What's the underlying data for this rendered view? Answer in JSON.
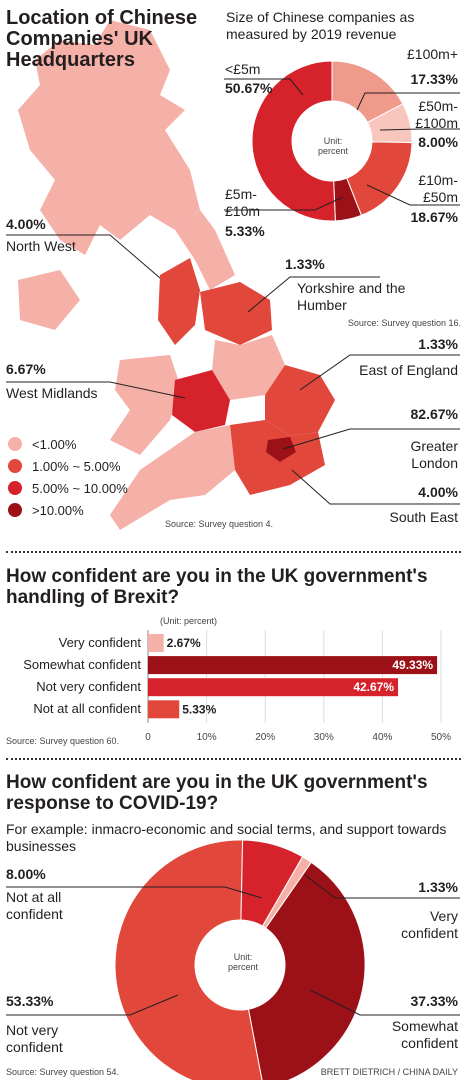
{
  "colors": {
    "light": "#f5b0a7",
    "mid": "#e2473b",
    "strong": "#d6232b",
    "dark": "#9c1118",
    "salmon": "#f09a8c"
  },
  "map": {
    "title": "Location of Chinese Companies' UK Headquarters",
    "source": "Source: Survey question 4.",
    "regions": [
      {
        "pct": "4.00%",
        "name": "North West"
      },
      {
        "pct": "1.33%",
        "name": "Yorkshire and the Humber"
      },
      {
        "pct": "6.67%",
        "name": "West Midlands"
      },
      {
        "pct": "1.33%",
        "name": "East of England"
      },
      {
        "pct": "82.67%",
        "name": "Greater London"
      },
      {
        "pct": "4.00%",
        "name": "South East"
      }
    ],
    "legend": [
      {
        "label": "<1.00%",
        "color": "#f5b0a7"
      },
      {
        "label": "1.00% ~ 5.00%",
        "color": "#e2473b"
      },
      {
        "label": "5.00% ~ 10.00%",
        "color": "#d6232b"
      },
      {
        "label": ">10.00%",
        "color": "#9c1118"
      }
    ]
  },
  "size_chart": {
    "title": "Size of Chinese companies as measured by 2019 revenue",
    "unit": "Unit: percent",
    "source": "Source: Survey question 16."
  },
  "brexit": {
    "title": "How confident are you in the UK government's handling of Brexit?",
    "unit": "(Unit: percent)",
    "source": "Source: Survey question 60."
  },
  "covid": {
    "title": "How confident are you in the UK government's response to COVID-19?",
    "subtitle": "For example: inmacro-economic and social terms, and support towards businesses",
    "unit": "Unit: percent",
    "source": "Source: Survey question 54."
  },
  "credit": "BRETT DIETRICH  / CHINA DAILY",
  "chart_data": [
    {
      "type": "pie",
      "title": "Size of Chinese companies as measured by 2019 revenue",
      "categories": [
        "£100m+",
        "£50m-£100m",
        "£10m-£50m",
        "£5m-£10m",
        "<£5m"
      ],
      "values": [
        17.33,
        8.0,
        18.67,
        5.33,
        50.67
      ],
      "colors": [
        "#f09a8c",
        "#f9c6bd",
        "#e2473b",
        "#9c1118",
        "#d6232b"
      ]
    },
    {
      "type": "bar",
      "title": "How confident are you in the UK government's handling of Brexit?",
      "categories": [
        "Very confident",
        "Somewhat confident",
        "Not very confident",
        "Not at all confident"
      ],
      "values": [
        2.67,
        49.33,
        42.67,
        5.33
      ],
      "value_labels": [
        "2.67%",
        "49.33%",
        "42.67%",
        "5.33%"
      ],
      "colors": [
        "#f5b0a7",
        "#9c1118",
        "#d6232b",
        "#e2473b"
      ],
      "ticks": [
        "0",
        "10%",
        "20%",
        "30%",
        "40%",
        "50%"
      ],
      "xlim": [
        0,
        50
      ]
    },
    {
      "type": "pie",
      "title": "How confident are you in the UK government's response to COVID-19?",
      "categories": [
        "Very confident",
        "Somewhat confident",
        "Not very confident",
        "Not at all confident"
      ],
      "values": [
        1.33,
        37.33,
        53.33,
        8.0
      ],
      "colors": [
        "#f5b0a7",
        "#9c1118",
        "#e2473b",
        "#d6232b"
      ]
    }
  ]
}
